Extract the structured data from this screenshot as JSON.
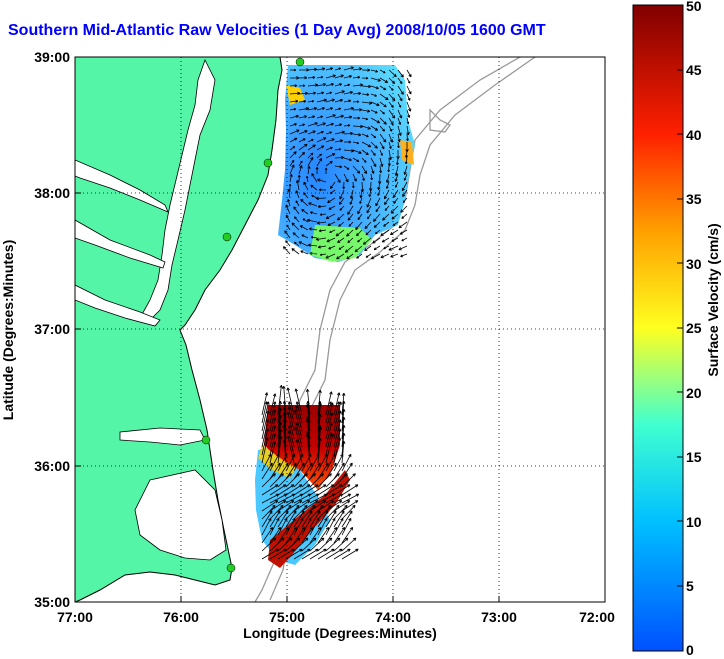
{
  "title": "Southern Mid-Atlantic Raw Velocities (1 Day Avg) 2008/10/05 1600 GMT",
  "axes": {
    "xlabel": "Longitude (Degrees:Minutes)",
    "ylabel": "Latitude (Degrees:Minutes)",
    "xticks": [
      "77:00",
      "76:00",
      "75:00",
      "74:00",
      "73:00",
      "72:00"
    ],
    "yticks": [
      "39:00",
      "38:00",
      "37:00",
      "36:00",
      "35:00"
    ]
  },
  "colorbar": {
    "label": "Surface Velocity (cm/s)",
    "ticks": [
      "50",
      "45",
      "40",
      "35",
      "30",
      "25",
      "20",
      "15",
      "10",
      "5",
      "0"
    ],
    "min": 0,
    "max": 50
  },
  "colors": {
    "land": "#55f5a8",
    "water": "#ffffff",
    "title": "#0000ff",
    "station": "#22cc22"
  }
}
